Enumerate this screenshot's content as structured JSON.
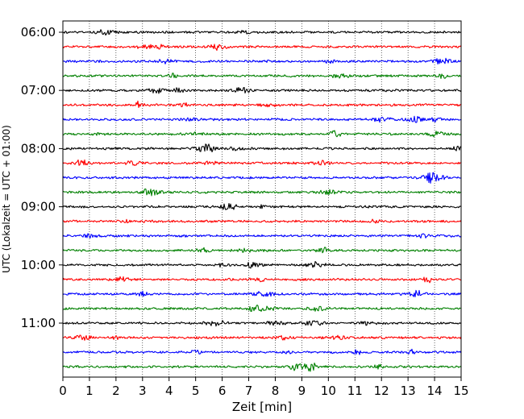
{
  "chart_data": {
    "type": "line",
    "xlabel": "Zeit  [min]",
    "ylabel": "UTC (Lokalzeit = UTC + 01:00)",
    "xlim": [
      0,
      15
    ],
    "x_ticks": [
      0,
      1,
      2,
      3,
      4,
      5,
      6,
      7,
      8,
      9,
      10,
      11,
      12,
      13,
      14,
      15
    ],
    "y_tick_labels": [
      "06:00",
      "07:00",
      "08:00",
      "09:00",
      "10:00",
      "11:00"
    ],
    "rows_per_hour": 4,
    "minutes_per_row": 15,
    "start_time": "06:00",
    "colors_cycle": [
      "#000000",
      "#ff0000",
      "#0000ff",
      "#008000"
    ],
    "grid": "vertical dotted at each minute",
    "legend": "none",
    "series": [
      {
        "time": "06:00",
        "color": "#000000"
      },
      {
        "time": "06:15",
        "color": "#ff0000"
      },
      {
        "time": "06:30",
        "color": "#0000ff"
      },
      {
        "time": "06:45",
        "color": "#008000"
      },
      {
        "time": "07:00",
        "color": "#000000"
      },
      {
        "time": "07:15",
        "color": "#ff0000"
      },
      {
        "time": "07:30",
        "color": "#0000ff"
      },
      {
        "time": "07:45",
        "color": "#008000"
      },
      {
        "time": "08:00",
        "color": "#000000"
      },
      {
        "time": "08:15",
        "color": "#ff0000"
      },
      {
        "time": "08:30",
        "color": "#0000ff"
      },
      {
        "time": "08:45",
        "color": "#008000"
      },
      {
        "time": "09:00",
        "color": "#000000"
      },
      {
        "time": "09:15",
        "color": "#ff0000"
      },
      {
        "time": "09:30",
        "color": "#0000ff"
      },
      {
        "time": "09:45",
        "color": "#008000"
      },
      {
        "time": "10:00",
        "color": "#000000"
      },
      {
        "time": "10:15",
        "color": "#ff0000"
      },
      {
        "time": "10:30",
        "color": "#0000ff"
      },
      {
        "time": "10:45",
        "color": "#008000"
      },
      {
        "time": "11:00",
        "color": "#000000"
      },
      {
        "time": "11:15",
        "color": "#ff0000"
      },
      {
        "time": "11:30",
        "color": "#0000ff"
      },
      {
        "time": "11:45",
        "color": "#008000"
      }
    ]
  }
}
